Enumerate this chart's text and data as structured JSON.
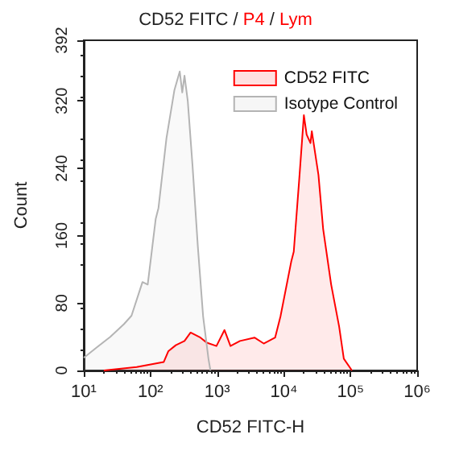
{
  "chart_data": {
    "type": "area",
    "title": "CD52 FITC / P4 / Lym",
    "xlabel": "CD52 FITC-H",
    "ylabel": "Count",
    "log": "x",
    "xlim": [
      10,
      1000000
    ],
    "xticks": [
      {
        "value": 10,
        "label": "10¹"
      },
      {
        "value": 100,
        "label": "10²"
      },
      {
        "value": 1000,
        "label": "10³"
      },
      {
        "value": 10000,
        "label": "10⁴"
      },
      {
        "value": 100000,
        "label": "10⁵"
      },
      {
        "value": 1000000,
        "label": "10⁶"
      }
    ],
    "ylim": [
      0,
      392
    ],
    "yticks": [
      0,
      80,
      160,
      240,
      320,
      392
    ],
    "grid": false,
    "legend": "top right",
    "marker": "none",
    "series": [
      {
        "name": "CD52 FITC",
        "color": "#ff0000",
        "x": [
          20,
          62,
          158,
          186,
          240,
          324,
          400,
          562,
          700,
          977,
          1290,
          1585,
          2200,
          3630,
          5000,
          7410,
          8910,
          12900,
          14100,
          17000,
          20000,
          22000,
          25100,
          26300,
          33100,
          38900,
          51300,
          67600,
          79400,
          105000
        ],
        "values": [
          0,
          4,
          10,
          23,
          30,
          35,
          45,
          39,
          33,
          29,
          48,
          29,
          35,
          39,
          32,
          39,
          64,
          129,
          141,
          226,
          303,
          280,
          270,
          284,
          232,
          168,
          102,
          52,
          14,
          0
        ]
      },
      {
        "name": "Isotype Control",
        "color": "#b4b4b4",
        "x": [
          10,
          16,
          25,
          40,
          52,
          76,
          91,
          120,
          132,
          174,
          229,
          275,
          300,
          324,
          363,
          427,
          513,
          617,
          741,
          794
        ],
        "values": [
          15,
          28,
          40,
          55,
          65,
          105,
          102,
          180,
          193,
          276,
          333,
          355,
          330,
          350,
          320,
          244,
          148,
          64,
          14,
          0
        ]
      }
    ]
  }
}
